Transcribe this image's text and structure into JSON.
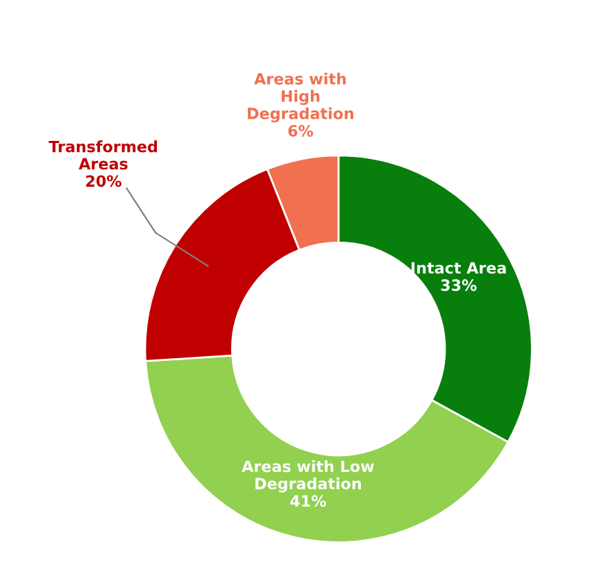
{
  "chart_data": {
    "type": "donut",
    "categories": [
      "Intact Area",
      "Areas with Low\nDegradation",
      "Transformed\nAreas",
      "Areas with\nHigh\nDegradation"
    ],
    "values": [
      33,
      41,
      20,
      6
    ],
    "colors": [
      "#087f0c",
      "#92d050",
      "#c00000",
      "#f07050"
    ],
    "value_labels": [
      "33%",
      "41%",
      "20%",
      "6%"
    ],
    "legend": false
  }
}
